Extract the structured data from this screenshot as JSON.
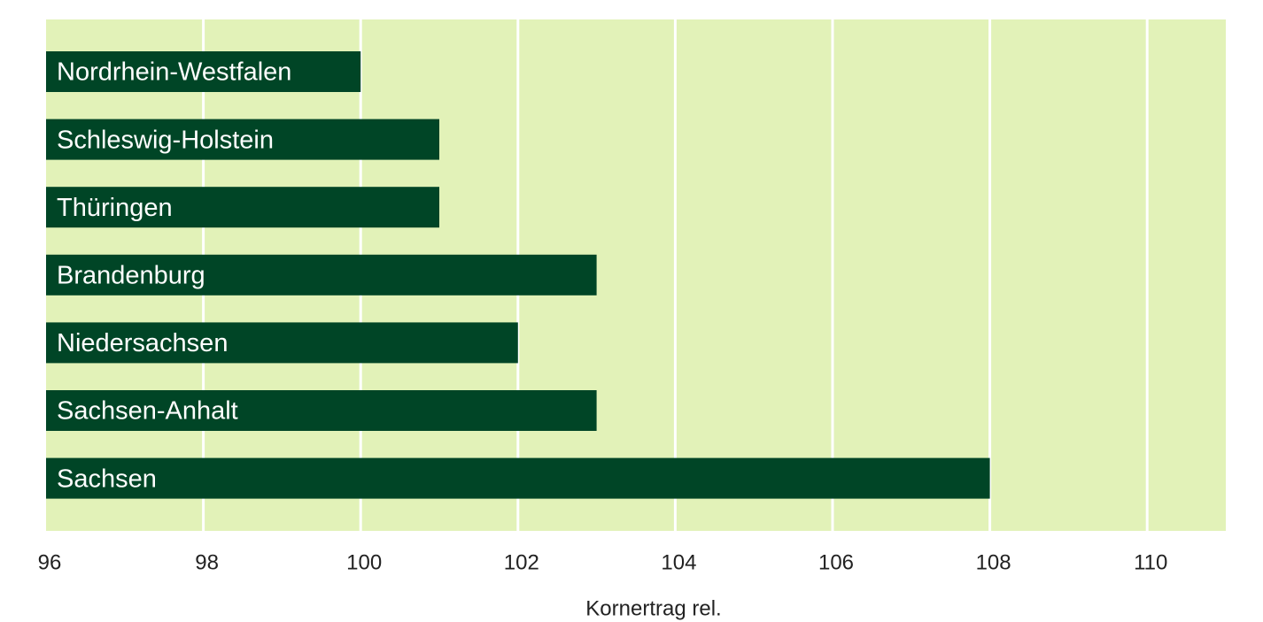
{
  "chart_data": {
    "type": "bar",
    "orientation": "horizontal",
    "categories": [
      "Nordrhein-Westfalen",
      "Schleswig-Holstein",
      "Thüringen",
      "Brandenburg",
      "Niedersachsen",
      "Sachsen-Anhalt",
      "Sachsen"
    ],
    "values": [
      100,
      101,
      101,
      103,
      102,
      103,
      108
    ],
    "color": "#004526",
    "background": "#e2f2b8",
    "grid": true,
    "xlim": [
      96,
      111
    ],
    "xticks": [
      96,
      98,
      100,
      102,
      104,
      106,
      108,
      110
    ],
    "xlabel": "Kornertrag rel."
  }
}
